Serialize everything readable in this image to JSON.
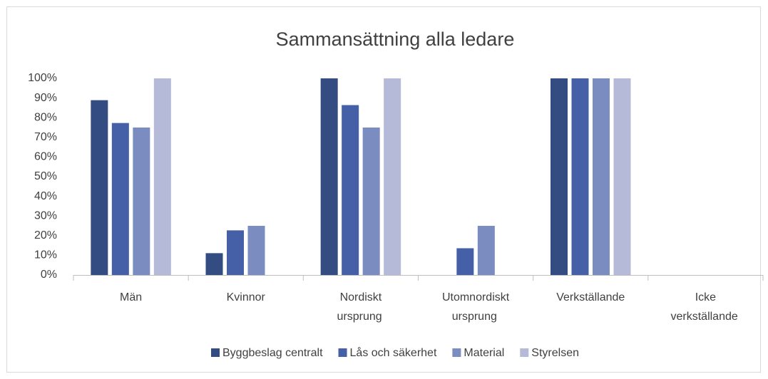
{
  "chart_data": {
    "type": "bar",
    "title": "Sammansättning alla ledare",
    "categories": [
      "Män",
      "Kvinnor",
      "Nordiskt ursprung",
      "Utomnordiskt ursprung",
      "Verkställande",
      "Icke verkställande"
    ],
    "series": [
      {
        "name": "Byggbeslag centralt",
        "color": "#334d82",
        "values": [
          88.9,
          11.1,
          100,
          0,
          100,
          0
        ]
      },
      {
        "name": "Lås och säkerhet",
        "color": "#4560a6",
        "values": [
          77.3,
          22.7,
          86.4,
          13.6,
          100,
          0
        ]
      },
      {
        "name": "Material",
        "color": "#7b8cc0",
        "values": [
          75,
          25,
          75,
          25,
          100,
          0
        ]
      },
      {
        "name": "Styrelsen",
        "color": "#b4bad8",
        "values": [
          100,
          0,
          100,
          0,
          100,
          0
        ]
      }
    ],
    "ylim": [
      0,
      100
    ],
    "yticks": [
      {
        "value": 0,
        "label": "0%"
      },
      {
        "value": 10,
        "label": "10%"
      },
      {
        "value": 20,
        "label": "20%"
      },
      {
        "value": 30,
        "label": "30%"
      },
      {
        "value": 40,
        "label": "40%"
      },
      {
        "value": 50,
        "label": "50%"
      },
      {
        "value": 60,
        "label": "60%"
      },
      {
        "value": 70,
        "label": "70%"
      },
      {
        "value": 80,
        "label": "80%"
      },
      {
        "value": 90,
        "label": "90%"
      },
      {
        "value": 100,
        "label": "100%"
      }
    ],
    "grid": false,
    "legend": "bottom"
  }
}
